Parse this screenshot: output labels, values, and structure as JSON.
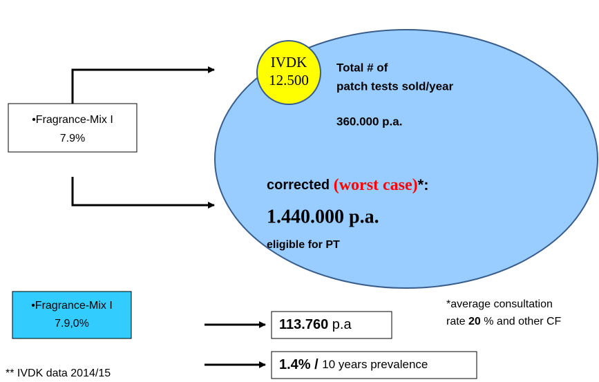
{
  "left_box": {
    "line1": "•Fragrance-Mix I",
    "line2": "7.9%"
  },
  "ivdk_circle": {
    "line1": "IVDK",
    "line2": "12.500"
  },
  "total": {
    "line1": "Total # of",
    "line2": "patch tests sold/year",
    "value": "360.000 p.a."
  },
  "corrected": {
    "label": "corrected ",
    "emphasis": "(worst case)",
    "suffix": "*:",
    "value": "1.440.000 p.a.",
    "note": "eligible for PT"
  },
  "cyan_box": {
    "line1": "•Fragrance-Mix I",
    "line2": "7.9,0%"
  },
  "footnote": {
    "line1": "*average consultation",
    "line2_pre": "rate ",
    "line2_bold": "20",
    "line2_post": " % and other CF"
  },
  "result_1": {
    "bold": "113.760",
    "rest": " p.a"
  },
  "result_2": {
    "bold": "1.4%",
    "sep": " / ",
    "rest": "10 years prevalence"
  },
  "source": "** IVDK data 2014/15"
}
